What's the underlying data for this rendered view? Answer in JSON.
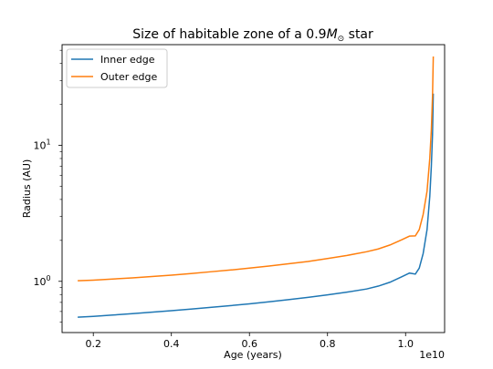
{
  "chart_data": {
    "type": "line",
    "title": {
      "prefix": "Size of habitable zone of a 0.9",
      "symbol": "M",
      "subscript": "⊙",
      "suffix": " star"
    },
    "xlabel": "Age (years)",
    "ylabel": "Radius (AU)",
    "x_offset_label": "1e10",
    "x_scale_factor": 10000000000.0,
    "xlim": [
      1200000000.0,
      11000000000.0
    ],
    "ylim": [
      0.42,
      55
    ],
    "yscale": "log",
    "x_ticks": [
      {
        "value": 2000000000.0,
        "label": "0.2"
      },
      {
        "value": 4000000000.0,
        "label": "0.4"
      },
      {
        "value": 6000000000.0,
        "label": "0.6"
      },
      {
        "value": 8000000000.0,
        "label": "0.8"
      },
      {
        "value": 10000000000.0,
        "label": "1.0"
      }
    ],
    "y_ticks": [
      {
        "value": 1,
        "base": "10",
        "exp": "0"
      },
      {
        "value": 10,
        "base": "10",
        "exp": "1"
      }
    ],
    "grid": false,
    "legend_position": "top-left",
    "series": [
      {
        "name": "Inner edge",
        "color": "#1f77b4",
        "points": [
          [
            1600000000.0,
            0.545
          ],
          [
            2000000000.0,
            0.552
          ],
          [
            2500000000.0,
            0.565
          ],
          [
            3000000000.0,
            0.578
          ],
          [
            3500000000.0,
            0.593
          ],
          [
            4000000000.0,
            0.608
          ],
          [
            4500000000.0,
            0.625
          ],
          [
            5000000000.0,
            0.643
          ],
          [
            5500000000.0,
            0.662
          ],
          [
            6000000000.0,
            0.683
          ],
          [
            6500000000.0,
            0.707
          ],
          [
            7000000000.0,
            0.733
          ],
          [
            7500000000.0,
            0.762
          ],
          [
            8000000000.0,
            0.795
          ],
          [
            8500000000.0,
            0.833
          ],
          [
            9000000000.0,
            0.878
          ],
          [
            9300000000.0,
            0.922
          ],
          [
            9600000000.0,
            0.985
          ],
          [
            9900000000.0,
            1.08
          ],
          [
            10100000000.0,
            1.15
          ],
          [
            10250000000.0,
            1.13
          ],
          [
            10350000000.0,
            1.25
          ],
          [
            10450000000.0,
            1.6
          ],
          [
            10550000000.0,
            2.4
          ],
          [
            10620000000.0,
            4.2
          ],
          [
            10660000000.0,
            7.0
          ],
          [
            10690000000.0,
            12.0
          ],
          [
            10710000000.0,
            24.0
          ]
        ]
      },
      {
        "name": "Outer edge",
        "color": "#ff7f0e",
        "points": [
          [
            1600000000.0,
            1.01
          ],
          [
            2000000000.0,
            1.02
          ],
          [
            2500000000.0,
            1.04
          ],
          [
            3000000000.0,
            1.06
          ],
          [
            3500000000.0,
            1.085
          ],
          [
            4000000000.0,
            1.11
          ],
          [
            4500000000.0,
            1.14
          ],
          [
            5000000000.0,
            1.175
          ],
          [
            5500000000.0,
            1.21
          ],
          [
            6000000000.0,
            1.25
          ],
          [
            6500000000.0,
            1.295
          ],
          [
            7000000000.0,
            1.345
          ],
          [
            7500000000.0,
            1.4
          ],
          [
            8000000000.0,
            1.47
          ],
          [
            8500000000.0,
            1.55
          ],
          [
            9000000000.0,
            1.65
          ],
          [
            9300000000.0,
            1.73
          ],
          [
            9600000000.0,
            1.85
          ],
          [
            9900000000.0,
            2.02
          ],
          [
            10100000000.0,
            2.15
          ],
          [
            10250000000.0,
            2.16
          ],
          [
            10350000000.0,
            2.4
          ],
          [
            10450000000.0,
            3.1
          ],
          [
            10550000000.0,
            4.6
          ],
          [
            10620000000.0,
            8.0
          ],
          [
            10660000000.0,
            13.0
          ],
          [
            10690000000.0,
            23.0
          ],
          [
            10710000000.0,
            45.0
          ]
        ]
      }
    ]
  }
}
